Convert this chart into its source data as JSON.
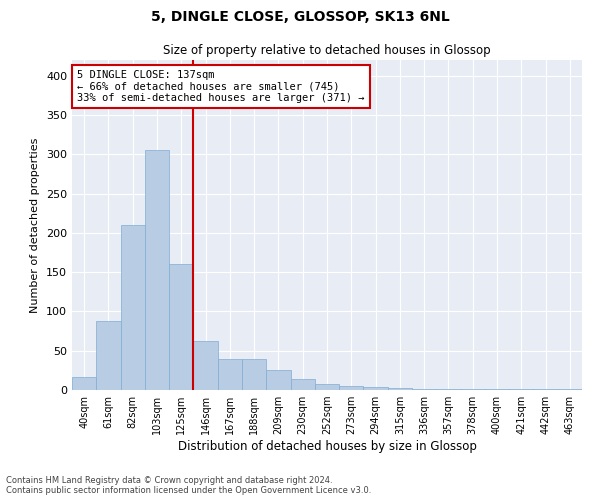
{
  "title": "5, DINGLE CLOSE, GLOSSOP, SK13 6NL",
  "subtitle": "Size of property relative to detached houses in Glossop",
  "xlabel": "Distribution of detached houses by size in Glossop",
  "ylabel": "Number of detached properties",
  "property_label": "5 DINGLE CLOSE: 137sqm",
  "annotation_line1": "← 66% of detached houses are smaller (745)",
  "annotation_line2": "33% of semi-detached houses are larger (371) →",
  "bin_labels": [
    "40sqm",
    "61sqm",
    "82sqm",
    "103sqm",
    "125sqm",
    "146sqm",
    "167sqm",
    "188sqm",
    "209sqm",
    "230sqm",
    "252sqm",
    "273sqm",
    "294sqm",
    "315sqm",
    "336sqm",
    "357sqm",
    "378sqm",
    "400sqm",
    "421sqm",
    "442sqm",
    "463sqm"
  ],
  "bar_values": [
    16,
    88,
    210,
    305,
    160,
    63,
    40,
    40,
    25,
    14,
    8,
    5,
    4,
    3,
    1,
    1,
    1,
    1,
    1,
    1,
    1
  ],
  "bar_color": "#b8cce4",
  "bar_edge_color": "#7fadd4",
  "vline_x": 4.5,
  "vline_color": "#cc0000",
  "bg_color": "#e8ecf5",
  "grid_color": "#ffffff",
  "annotation_box_color": "#cc0000",
  "footer_line1": "Contains HM Land Registry data © Crown copyright and database right 2024.",
  "footer_line2": "Contains public sector information licensed under the Open Government Licence v3.0.",
  "ylim": [
    0,
    420
  ],
  "yticks": [
    0,
    50,
    100,
    150,
    200,
    250,
    300,
    350,
    400
  ]
}
